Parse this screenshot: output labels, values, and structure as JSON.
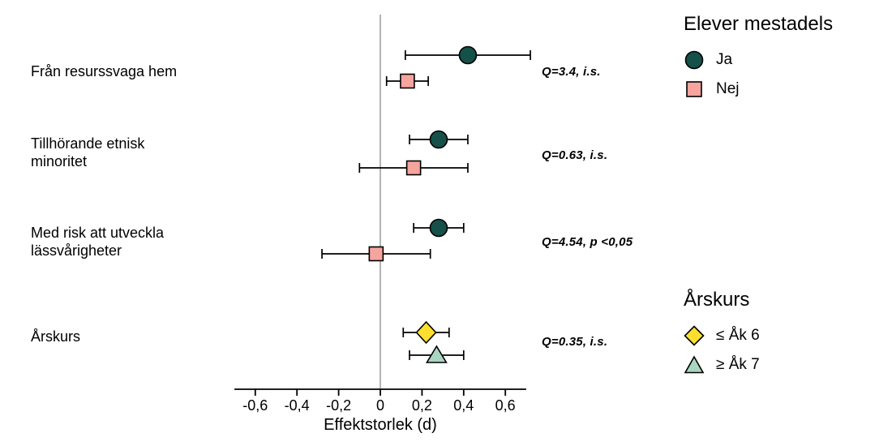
{
  "chart_data": {
    "type": "forest",
    "title": "",
    "xlabel": "Effektstorlek (d)",
    "xlim": [
      -0.7,
      0.7
    ],
    "x_ticks": [
      "-0,6",
      "-0,4",
      "-0,2",
      "0",
      "0,2",
      "0,4",
      "0,6"
    ],
    "x_tick_values": [
      -0.6,
      -0.4,
      -0.2,
      0,
      0.2,
      0.4,
      0.6
    ],
    "zero_line": 0,
    "grid": "off",
    "legend_position": "right",
    "groups": [
      {
        "label_lines": [
          "Från resurssvaga hem"
        ],
        "q_label": "Q=3.4, i.s.",
        "points": [
          {
            "series": "Ja",
            "marker": "circle",
            "color": "#155049",
            "d": 0.42,
            "ci_low": 0.12,
            "ci_high": 0.72
          },
          {
            "series": "Nej",
            "marker": "square",
            "color": "#f6a49e",
            "d": 0.13,
            "ci_low": 0.03,
            "ci_high": 0.23
          }
        ]
      },
      {
        "label_lines": [
          "Tillhörande etnisk",
          "minoritet"
        ],
        "q_label": "Q=0.63, i.s.",
        "points": [
          {
            "series": "Ja",
            "marker": "circle",
            "color": "#155049",
            "d": 0.28,
            "ci_low": 0.14,
            "ci_high": 0.42
          },
          {
            "series": "Nej",
            "marker": "square",
            "color": "#f6a49e",
            "d": 0.16,
            "ci_low": -0.1,
            "ci_high": 0.42
          }
        ]
      },
      {
        "label_lines": [
          "Med risk att utveckla",
          "lässvårigheter"
        ],
        "q_label": "Q=4.54, p <0,05",
        "points": [
          {
            "series": "Ja",
            "marker": "circle",
            "color": "#155049",
            "d": 0.28,
            "ci_low": 0.16,
            "ci_high": 0.4
          },
          {
            "series": "Nej",
            "marker": "square",
            "color": "#f6a49e",
            "d": -0.02,
            "ci_low": -0.28,
            "ci_high": 0.24
          }
        ]
      },
      {
        "label_lines": [
          "Årskurs"
        ],
        "q_label": "Q=0.35, i.s.",
        "points": [
          {
            "series": "≤ Åk 6",
            "marker": "diamond",
            "color": "#ffdf2e",
            "d": 0.22,
            "ci_low": 0.11,
            "ci_high": 0.33
          },
          {
            "series": "≥ Åk 7",
            "marker": "triangle",
            "color": "#a9d6c3",
            "d": 0.27,
            "ci_low": 0.14,
            "ci_high": 0.4
          }
        ]
      }
    ],
    "legends": [
      {
        "title": "Elever mestadels",
        "items": [
          {
            "label": "Ja",
            "marker": "circle",
            "color": "#155049"
          },
          {
            "label": "Nej",
            "marker": "square",
            "color": "#f6a49e"
          }
        ]
      },
      {
        "title": "Årskurs",
        "items": [
          {
            "label": "≤ Åk 6",
            "marker": "diamond",
            "color": "#ffdf2e"
          },
          {
            "label": "≥ Åk 7",
            "marker": "triangle",
            "color": "#a9d6c3"
          }
        ]
      }
    ]
  }
}
